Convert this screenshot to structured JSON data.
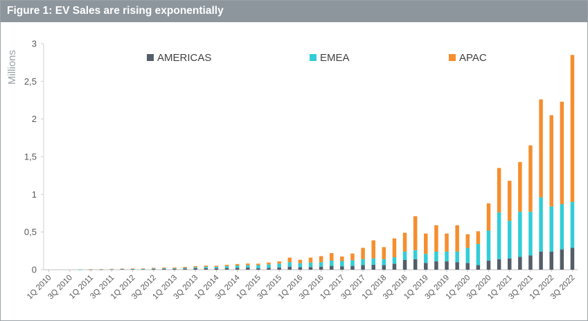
{
  "figure_title": "Figure 1: EV Sales are rising exponentially",
  "chart_data": {
    "type": "bar",
    "stacked": true,
    "ylabel": "Millions",
    "ylim": [
      0,
      3
    ],
    "yticks": [
      "0",
      "0,5",
      "1",
      "1,5",
      "2",
      "2,5",
      "3"
    ],
    "ytick_values": [
      0,
      0.5,
      1,
      1.5,
      2,
      2.5,
      3
    ],
    "legend_position": "top",
    "categories": [
      "1Q 2010",
      "2Q 2010",
      "3Q 2010",
      "4Q 2010",
      "1Q 2011",
      "2Q 2011",
      "3Q 2011",
      "4Q 2011",
      "1Q 2012",
      "2Q 2012",
      "3Q 2012",
      "4Q 2012",
      "1Q 2013",
      "2Q 2013",
      "3Q 2013",
      "4Q 2013",
      "1Q 2014",
      "2Q 2014",
      "3Q 2014",
      "4Q 2014",
      "1Q 2015",
      "2Q 2015",
      "3Q 2015",
      "4Q 2015",
      "1Q 2016",
      "2Q 2016",
      "3Q 2016",
      "4Q 2016",
      "1Q 2017",
      "2Q 2017",
      "3Q 2017",
      "4Q 2017",
      "1Q 2018",
      "2Q 2018",
      "3Q 2018",
      "4Q 2018",
      "1Q 2019",
      "2Q 2019",
      "3Q 2019",
      "4Q 2019",
      "1Q 2020",
      "2Q 2020",
      "3Q 2020",
      "4Q 2020",
      "1Q 2021",
      "2Q 2021",
      "3Q 2021",
      "4Q 2021",
      "1Q 2022",
      "2Q 2022",
      "3Q 2022"
    ],
    "tick_labels": [
      "1Q 2010",
      "3Q 2010",
      "1Q 2011",
      "3Q 2011",
      "1Q 2012",
      "3Q 2012",
      "1Q 2013",
      "3Q 2013",
      "1Q 2014",
      "3Q 2014",
      "1Q 2015",
      "3Q 2015",
      "1Q 2016",
      "3Q 2016",
      "1Q 2017",
      "3Q 2017",
      "1Q 2018",
      "3Q 2018",
      "1Q 2019",
      "3Q 2019",
      "1Q 2020",
      "3Q 2020",
      "1Q 2021",
      "3Q 2021",
      "1Q 2022",
      "3Q 2022"
    ],
    "series": [
      {
        "name": "AMERICAS",
        "color": "#545e68",
        "values": [
          0,
          0,
          0,
          0.001,
          0.003,
          0.003,
          0.004,
          0.006,
          0.006,
          0.006,
          0.01,
          0.012,
          0.012,
          0.015,
          0.02,
          0.02,
          0.018,
          0.022,
          0.025,
          0.027,
          0.02,
          0.025,
          0.03,
          0.04,
          0.032,
          0.035,
          0.04,
          0.05,
          0.045,
          0.05,
          0.06,
          0.065,
          0.06,
          0.08,
          0.13,
          0.14,
          0.09,
          0.11,
          0.11,
          0.1,
          0.09,
          0.06,
          0.12,
          0.14,
          0.15,
          0.17,
          0.19,
          0.24,
          0.24,
          0.27,
          0.29
        ]
      },
      {
        "name": "EMEA",
        "color": "#32cdd7",
        "values": [
          0,
          0,
          0,
          0.001,
          0.002,
          0.002,
          0.003,
          0.004,
          0.004,
          0.005,
          0.007,
          0.008,
          0.008,
          0.01,
          0.013,
          0.02,
          0.02,
          0.025,
          0.03,
          0.032,
          0.04,
          0.045,
          0.05,
          0.06,
          0.055,
          0.06,
          0.06,
          0.07,
          0.07,
          0.075,
          0.08,
          0.085,
          0.08,
          0.085,
          0.11,
          0.12,
          0.12,
          0.13,
          0.13,
          0.14,
          0.2,
          0.28,
          0.4,
          0.62,
          0.5,
          0.6,
          0.58,
          0.72,
          0.6,
          0.6,
          0.61
        ]
      },
      {
        "name": "APAC",
        "color": "#f58e2e",
        "values": [
          0,
          0,
          0,
          0,
          0.002,
          0.003,
          0.004,
          0.004,
          0.005,
          0.006,
          0.008,
          0.009,
          0.01,
          0.012,
          0.014,
          0.015,
          0.015,
          0.018,
          0.02,
          0.023,
          0.02,
          0.025,
          0.03,
          0.06,
          0.045,
          0.065,
          0.08,
          0.1,
          0.06,
          0.09,
          0.15,
          0.24,
          0.16,
          0.25,
          0.25,
          0.45,
          0.27,
          0.35,
          0.24,
          0.35,
          0.18,
          0.17,
          0.36,
          0.59,
          0.53,
          0.66,
          0.88,
          1.3,
          1.21,
          1.36,
          1.95
        ]
      }
    ]
  }
}
